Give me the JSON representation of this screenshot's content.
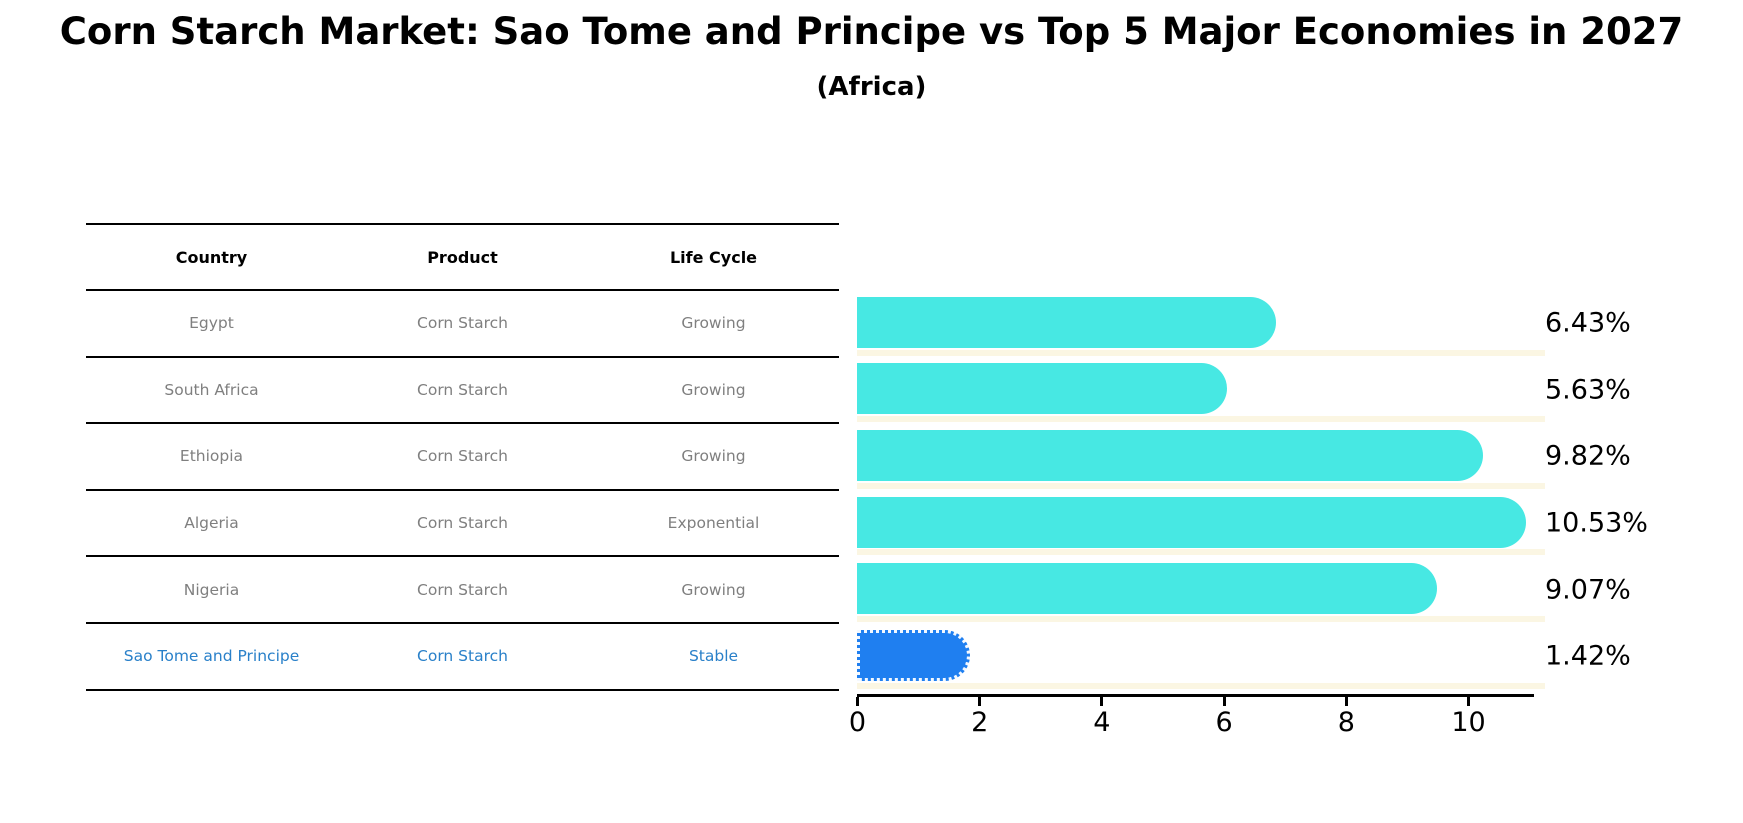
{
  "header": {
    "title": "Corn Starch Market: Sao Tome and Principe vs Top 5 Major Economies in 2027",
    "subtitle": "(Africa)"
  },
  "table": {
    "headers": [
      "Country",
      "Product",
      "Life Cycle"
    ],
    "rows": [
      {
        "country": "Egypt",
        "product": "Corn Starch",
        "life_cycle": "Growing",
        "highlight": false
      },
      {
        "country": "South Africa",
        "product": "Corn Starch",
        "life_cycle": "Growing",
        "highlight": false
      },
      {
        "country": "Ethiopia",
        "product": "Corn Starch",
        "life_cycle": "Growing",
        "highlight": false
      },
      {
        "country": "Algeria",
        "product": "Corn Starch",
        "life_cycle": "Exponential",
        "highlight": false
      },
      {
        "country": "Nigeria",
        "product": "Corn Starch",
        "life_cycle": "Growing",
        "highlight": false
      },
      {
        "country": "Sao Tome and Principe",
        "product": "Corn Starch",
        "life_cycle": "Stable",
        "highlight": true
      }
    ]
  },
  "chart_data": {
    "type": "bar",
    "orientation": "horizontal",
    "title": "Corn Starch Market: Sao Tome and Principe vs Top 5 Major Economies in 2027 (Africa)",
    "categories": [
      "Egypt",
      "South Africa",
      "Ethiopia",
      "Algeria",
      "Nigeria",
      "Sao Tome and Principe"
    ],
    "values": [
      6.43,
      5.63,
      9.82,
      10.53,
      9.07,
      1.42
    ],
    "value_labels": [
      "6.43%",
      "5.63%",
      "9.82%",
      "10.53%",
      "9.07%",
      "1.42%"
    ],
    "xlabel": "",
    "ylabel": "",
    "xticks": [
      0,
      2,
      4,
      6,
      8,
      10
    ],
    "xlim": [
      0,
      11.06
    ],
    "grid": false,
    "legend": "none",
    "highlight_index": 5
  },
  "colors": {
    "bar": "#47E8E3",
    "highlight_bar": "#1F7FF0",
    "highlight_text": "#2980C9",
    "table_text": "#7F7F7F",
    "axis": "#000000",
    "band": "#FBF6E3",
    "background": "#FFFFFF"
  }
}
